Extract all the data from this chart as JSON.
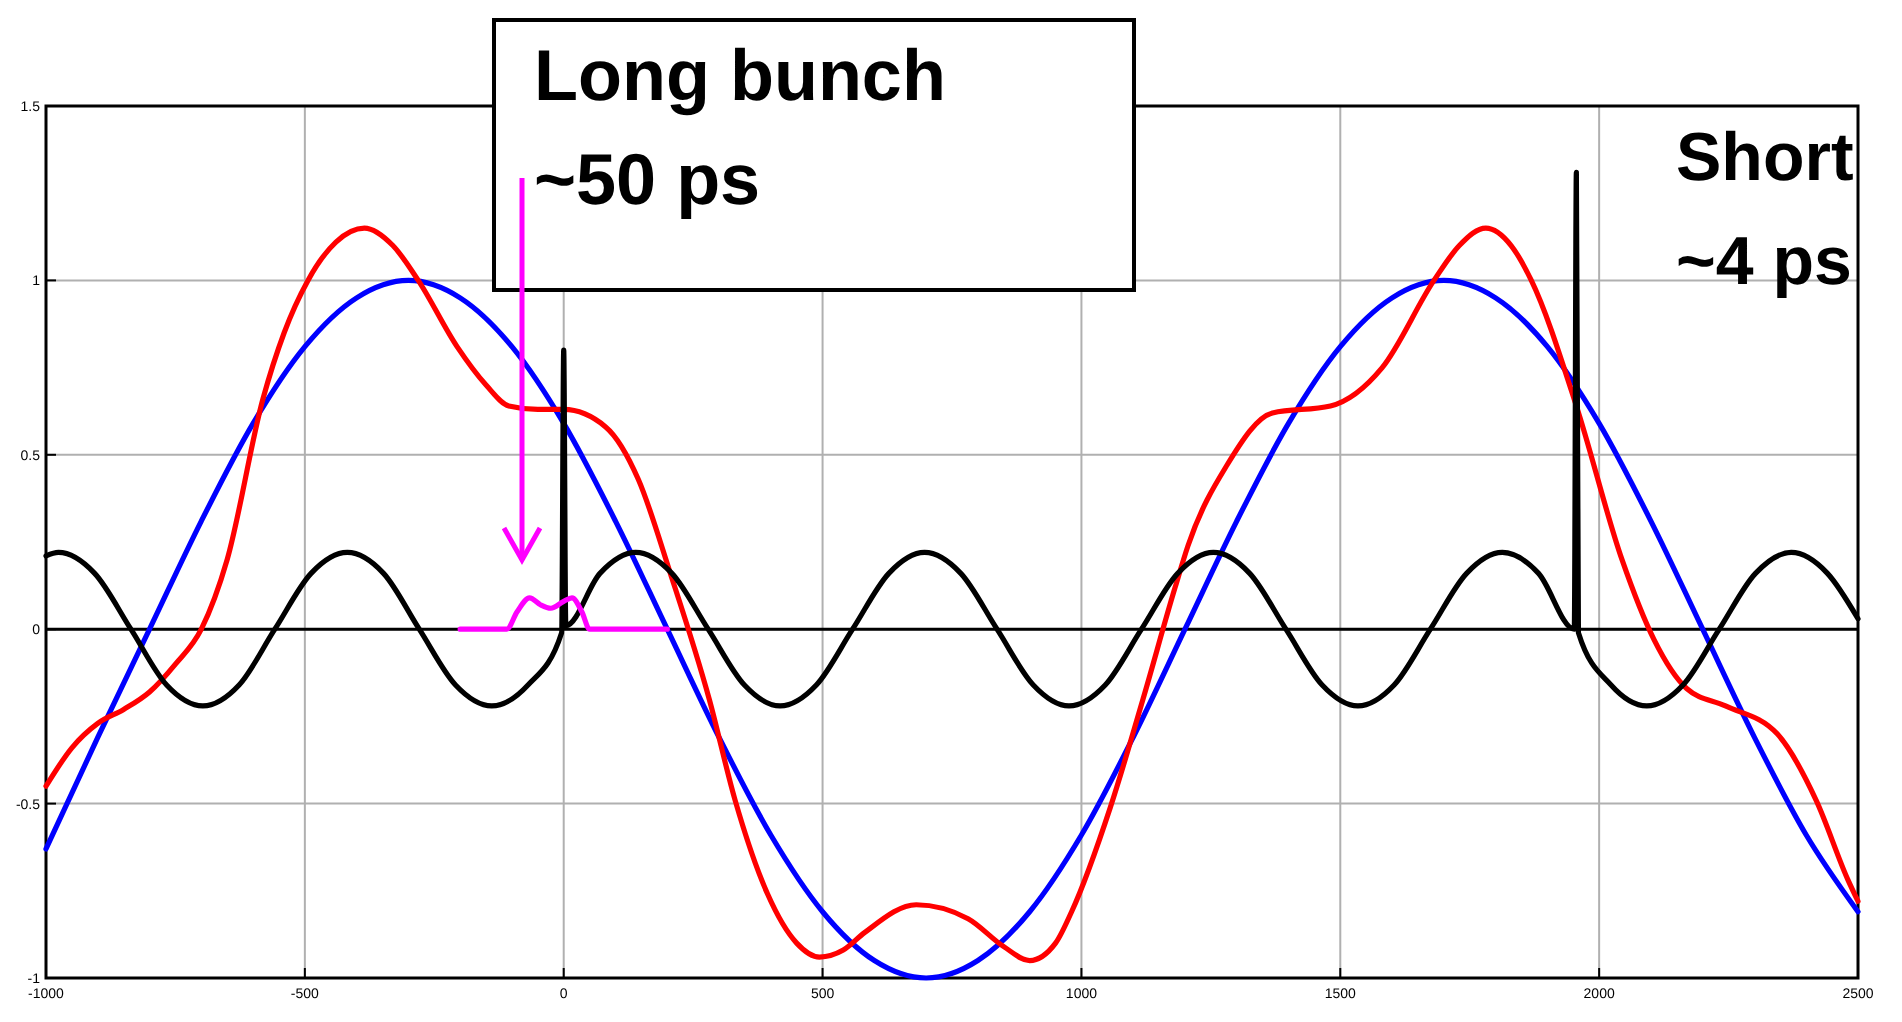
{
  "chart_data": {
    "type": "line",
    "xlim": [
      -1000,
      2500
    ],
    "ylim": [
      -1,
      1.5
    ],
    "xticks": [
      -1000,
      -500,
      0,
      500,
      1000,
      1500,
      2000,
      2500
    ],
    "yticks": [
      -1,
      -0.5,
      0,
      0.5,
      1,
      1.5
    ],
    "grid": true,
    "line_style": "solid",
    "marker": "none",
    "ref_lines": [
      {
        "axis": "y",
        "value": 0,
        "color": "#000000"
      }
    ],
    "annotations": [
      "Long bunch\n~50 ps",
      "Short\n~4 ps"
    ],
    "series": [
      {
        "color": "#0000ff",
        "x": [
          -1000,
          -900,
          -800,
          -700,
          -600,
          -500,
          -400,
          -300,
          -200,
          -100,
          0,
          100,
          200,
          300,
          400,
          500,
          600,
          700,
          800,
          900,
          1000,
          1100,
          1200,
          1300,
          1400,
          1500,
          1600,
          1700,
          1800,
          1900,
          2000,
          2100,
          2200,
          2300,
          2400,
          2500
        ],
        "values": [
          -0.63,
          -0.31,
          0,
          0.31,
          0.59,
          0.81,
          0.95,
          1,
          0.95,
          0.81,
          0.59,
          0.31,
          0,
          -0.31,
          -0.59,
          -0.81,
          -0.95,
          -1,
          -0.95,
          -0.81,
          -0.59,
          -0.31,
          0,
          0.31,
          0.59,
          0.81,
          0.95,
          1,
          0.95,
          0.81,
          0.59,
          0.31,
          0,
          -0.31,
          -0.59,
          -0.81
        ]
      },
      {
        "color": "#ff0000",
        "x": [
          -1000,
          -950,
          -900,
          -850,
          -800,
          -750,
          -700,
          -650,
          -581,
          -540,
          -494,
          -440,
          -385,
          -330,
          -281,
          -206,
          -150,
          -106,
          -50,
          0,
          81,
          144,
          206,
          281,
          331,
          394,
          450,
          494,
          540,
          581,
          681,
          781,
          850,
          900,
          950,
          981,
          1056,
          1119,
          1181,
          1206,
          1281,
          1369,
          1481,
          1581,
          1681,
          1730,
          1781,
          1830,
          1869,
          1956,
          2044,
          2106,
          2169,
          2244,
          2344,
          2419,
          2481,
          2500
        ],
        "values": [
          -0.45,
          -0.34,
          -0.27,
          -0.23,
          -0.18,
          -0.1,
          0,
          0.2,
          0.66,
          0.85,
          1,
          1.11,
          1.15,
          1.1,
          1,
          0.81,
          0.7,
          0.64,
          0.63,
          0.63,
          0.58,
          0.43,
          0.16,
          -0.2,
          -0.49,
          -0.76,
          -0.9,
          -0.94,
          -0.92,
          -0.87,
          -0.79,
          -0.83,
          -0.91,
          -0.95,
          -0.9,
          -0.81,
          -0.51,
          -0.2,
          0.12,
          0.24,
          0.47,
          0.62,
          0.64,
          0.75,
          1,
          1.1,
          1.15,
          1.1,
          1,
          0.64,
          0.2,
          -0.03,
          -0.17,
          -0.22,
          -0.3,
          -0.49,
          -0.72,
          -0.78
        ]
      },
      {
        "color": "#000000",
        "x": [
          -1000,
          -976,
          -906,
          -836,
          -767,
          -697,
          -627,
          -558,
          -488,
          -418,
          -348,
          -279,
          -209,
          -139,
          -69,
          -4,
          0,
          4,
          70,
          139,
          209,
          279,
          349,
          418,
          488,
          558,
          628,
          697,
          767,
          837,
          907,
          976,
          1046,
          1116,
          1186,
          1255,
          1325,
          1395,
          1465,
          1534,
          1604,
          1674,
          1744,
          1813,
          1883,
          1952,
          1956,
          1960,
          2023,
          2092,
          2162,
          2232,
          2302,
          2371,
          2441,
          2500
        ],
        "values": [
          0.21,
          0.22,
          0.16,
          0,
          -0.16,
          -0.22,
          -0.16,
          0,
          0.16,
          0.22,
          0.16,
          0,
          -0.16,
          -0.22,
          -0.16,
          -0.01,
          0.8,
          0.01,
          0.16,
          0.22,
          0.16,
          0,
          -0.16,
          -0.22,
          -0.16,
          0,
          0.16,
          0.22,
          0.16,
          0,
          -0.16,
          -0.22,
          -0.16,
          0,
          0.16,
          0.22,
          0.16,
          0,
          -0.16,
          -0.22,
          -0.16,
          0,
          0.16,
          0.22,
          0.16,
          0,
          1.31,
          -0.01,
          -0.16,
          -0.22,
          -0.16,
          0,
          0.16,
          0.22,
          0.16,
          0.03
        ]
      },
      {
        "color": "#ff00ff",
        "x": [
          -200,
          -110,
          -90,
          -66,
          -45,
          -25,
          0,
          16,
          35,
          50,
          200
        ],
        "values": [
          0,
          0,
          0.05,
          0.09,
          0.07,
          0.06,
          0.08,
          0.09,
          0.05,
          0,
          0
        ]
      }
    ]
  }
}
